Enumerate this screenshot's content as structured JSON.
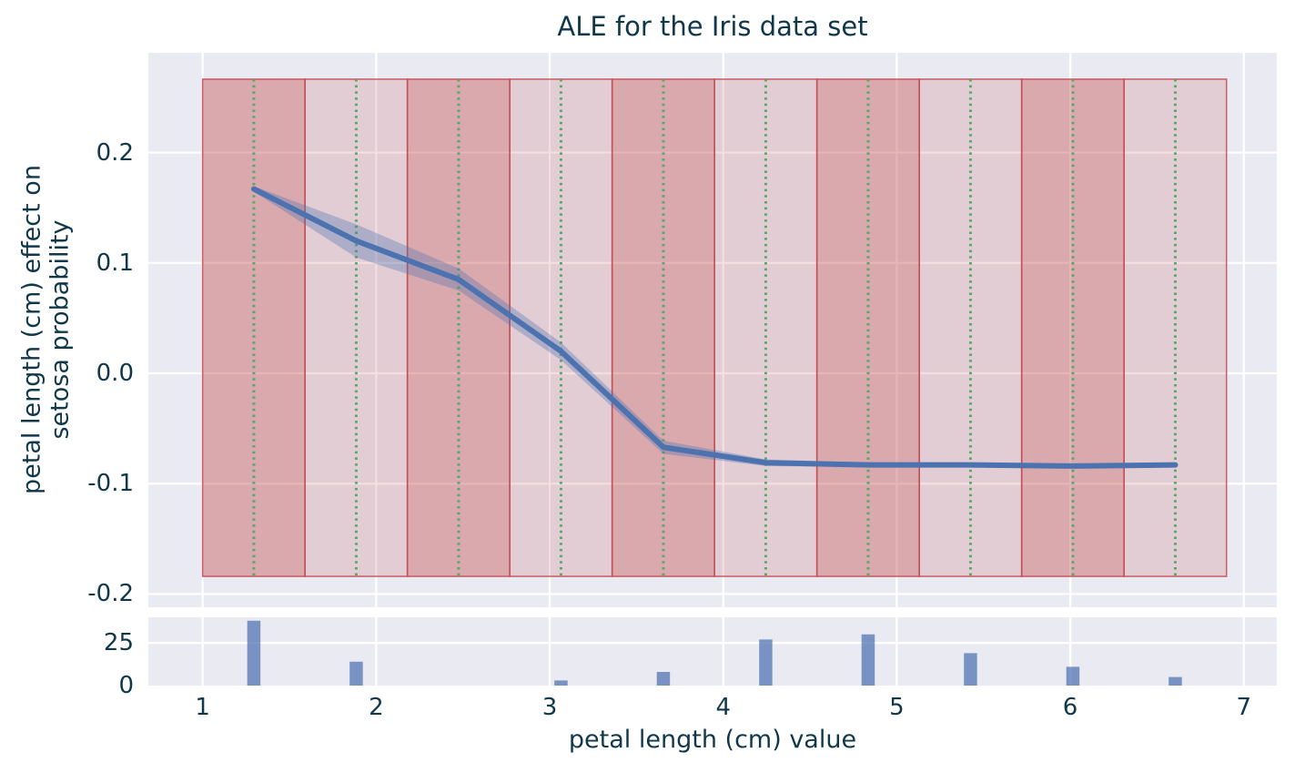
{
  "title": "ALE for the Iris data set",
  "labels": {
    "ylabel_line1": "petal length (cm) effect on",
    "ylabel_line2": "setosa probability",
    "xlabel": "petal length (cm) value"
  },
  "colors": {
    "figure_bg": "#ffffff",
    "axes_bg": "#eaeaf2",
    "grid": "#ffffff",
    "text": "#10384a",
    "ale_line": "#4c72b0",
    "ci_fill": "rgba(76,114,176,0.35)",
    "band_red": "#c44e52",
    "band_alpha_dark": 0.42,
    "band_alpha_light": 0.18,
    "band_edge": "rgba(196,78,82,0.85)",
    "bin_center_line": "#55a868",
    "bar_fill": "rgba(76,114,176,0.72)"
  },
  "chart_data": [
    {
      "type": "line",
      "name": "ALE effect of petal length on setosa probability",
      "x": [
        1.295,
        1.885,
        2.475,
        3.065,
        3.655,
        4.245,
        4.835,
        5.425,
        6.015,
        6.605
      ],
      "y": [
        0.167,
        0.12,
        0.085,
        0.02,
        -0.067,
        -0.081,
        -0.083,
        -0.083,
        -0.084,
        -0.083
      ],
      "ci_halfwidth": [
        0.0025,
        0.015,
        0.01,
        0.008,
        0.006,
        0.003,
        0.002,
        0.002,
        0.002,
        0.002
      ],
      "bin_edges": [
        1.0,
        1.59,
        2.18,
        2.77,
        3.36,
        3.95,
        4.54,
        5.13,
        5.72,
        6.31,
        6.9
      ],
      "bin_center_lines": [
        1.295,
        1.885,
        2.475,
        3.065,
        3.655,
        4.245,
        4.835,
        5.425,
        6.015,
        6.605
      ],
      "band_y_range": [
        -0.184,
        0.2665
      ],
      "xlim": [
        0.687,
        7.19
      ],
      "ylim": [
        -0.212,
        0.2904
      ],
      "xticks": [
        1,
        2,
        3,
        4,
        5,
        6,
        7
      ],
      "yticks": [
        0.2,
        0.1,
        0.0,
        -0.1,
        -0.2
      ],
      "ytick_labels": [
        "0.2",
        "0.1",
        "0.0",
        "-0.1",
        "-0.2"
      ],
      "grid": true,
      "legend": false
    },
    {
      "type": "bar",
      "name": "petal length sample distribution per ALE bin",
      "x": [
        1.295,
        1.885,
        2.475,
        3.065,
        3.655,
        4.245,
        4.835,
        5.425,
        6.015,
        6.605
      ],
      "values": [
        38,
        14,
        0,
        3,
        8,
        27,
        30,
        19,
        11,
        5
      ],
      "bar_width_units": 0.076,
      "xlim": [
        0.687,
        7.19
      ],
      "ylim": [
        0,
        40
      ],
      "yticks": [
        25,
        0
      ],
      "ytick_labels": [
        "25",
        "0"
      ],
      "xticks": [
        1,
        2,
        3,
        4,
        5,
        6,
        7
      ],
      "xtick_labels": [
        "1",
        "2",
        "3",
        "4",
        "5",
        "6",
        "7"
      ],
      "grid": true
    }
  ]
}
